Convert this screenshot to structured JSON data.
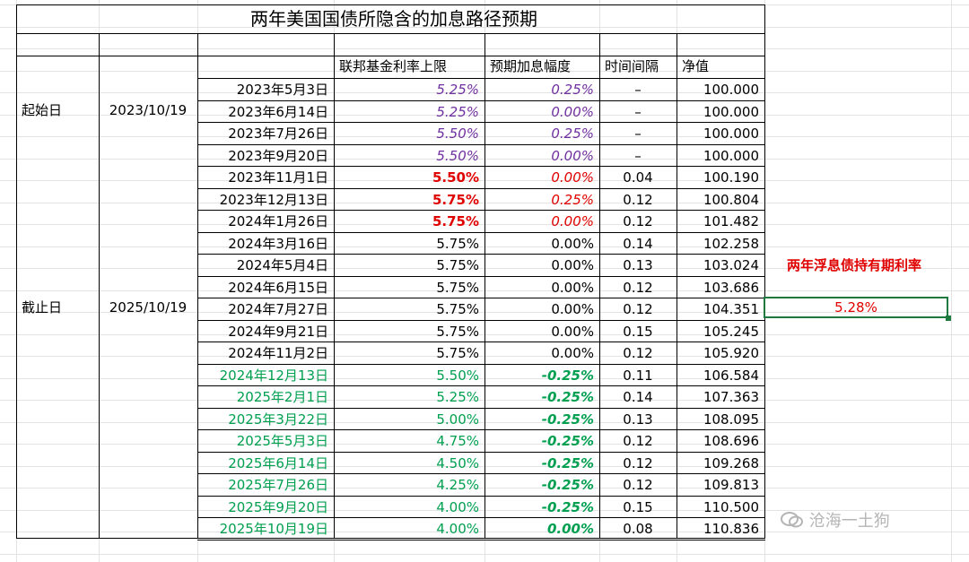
{
  "title": "两年美国国债所隐含的加息路径预期",
  "headers": {
    "rate": "联邦基金利率上限",
    "hike": "预期加息幅度",
    "interval": "时间间隔",
    "nav": "净值"
  },
  "start_label": "起始日",
  "start_date": "2023/10/19",
  "end_label": "截止日",
  "end_date": "2025/10/19",
  "side_label": "两年浮息债持有期利率",
  "side_value": "5.28%",
  "watermark": "沧海一土狗",
  "rows": [
    {
      "date": "2023年5月3日",
      "rate": "5.25%",
      "hike": "0.25%",
      "interval": "–",
      "nav": "100.000",
      "style": "purple"
    },
    {
      "date": "2023年6月14日",
      "rate": "5.25%",
      "hike": "0.00%",
      "interval": "–",
      "nav": "100.000",
      "style": "purple"
    },
    {
      "date": "2023年7月26日",
      "rate": "5.50%",
      "hike": "0.25%",
      "interval": "–",
      "nav": "100.000",
      "style": "purple"
    },
    {
      "date": "2023年9月20日",
      "rate": "5.50%",
      "hike": "0.00%",
      "interval": "–",
      "nav": "100.000",
      "style": "purple"
    },
    {
      "date": "2023年11月1日",
      "rate": "5.50%",
      "hike": "0.00%",
      "interval": "0.04",
      "nav": "100.190",
      "style": "red"
    },
    {
      "date": "2023年12月13日",
      "rate": "5.75%",
      "hike": "0.25%",
      "interval": "0.12",
      "nav": "100.804",
      "style": "red"
    },
    {
      "date": "2024年1月26日",
      "rate": "5.75%",
      "hike": "0.00%",
      "interval": "0.12",
      "nav": "101.482",
      "style": "red"
    },
    {
      "date": "2024年3月16日",
      "rate": "5.75%",
      "hike": "0.00%",
      "interval": "0.14",
      "nav": "102.258",
      "style": "black"
    },
    {
      "date": "2024年5月4日",
      "rate": "5.75%",
      "hike": "0.00%",
      "interval": "0.13",
      "nav": "103.024",
      "style": "black"
    },
    {
      "date": "2024年6月15日",
      "rate": "5.75%",
      "hike": "0.00%",
      "interval": "0.12",
      "nav": "103.686",
      "style": "black"
    },
    {
      "date": "2024年7月27日",
      "rate": "5.75%",
      "hike": "0.00%",
      "interval": "0.12",
      "nav": "104.351",
      "style": "black"
    },
    {
      "date": "2024年9月21日",
      "rate": "5.75%",
      "hike": "0.00%",
      "interval": "0.15",
      "nav": "105.245",
      "style": "black"
    },
    {
      "date": "2024年11月2日",
      "rate": "5.75%",
      "hike": "0.00%",
      "interval": "0.12",
      "nav": "105.920",
      "style": "black"
    },
    {
      "date": "2024年12月13日",
      "rate": "5.50%",
      "hike": "-0.25%",
      "interval": "0.11",
      "nav": "106.584",
      "style": "green"
    },
    {
      "date": "2025年2月1日",
      "rate": "5.25%",
      "hike": "-0.25%",
      "interval": "0.14",
      "nav": "107.363",
      "style": "green"
    },
    {
      "date": "2025年3月22日",
      "rate": "5.00%",
      "hike": "-0.25%",
      "interval": "0.13",
      "nav": "108.095",
      "style": "green"
    },
    {
      "date": "2025年5月3日",
      "rate": "4.75%",
      "hike": "-0.25%",
      "interval": "0.12",
      "nav": "108.696",
      "style": "green"
    },
    {
      "date": "2025年6月14日",
      "rate": "4.50%",
      "hike": "-0.25%",
      "interval": "0.12",
      "nav": "109.268",
      "style": "green"
    },
    {
      "date": "2025年7月26日",
      "rate": "4.25%",
      "hike": "-0.25%",
      "interval": "0.12",
      "nav": "109.813",
      "style": "green"
    },
    {
      "date": "2025年9月20日",
      "rate": "4.00%",
      "hike": "-0.25%",
      "interval": "0.15",
      "nav": "110.500",
      "style": "green"
    },
    {
      "date": "2025年10月19日",
      "rate": "4.00%",
      "hike": "0.00%",
      "interval": "0.08",
      "nav": "110.836",
      "style": "green"
    }
  ]
}
